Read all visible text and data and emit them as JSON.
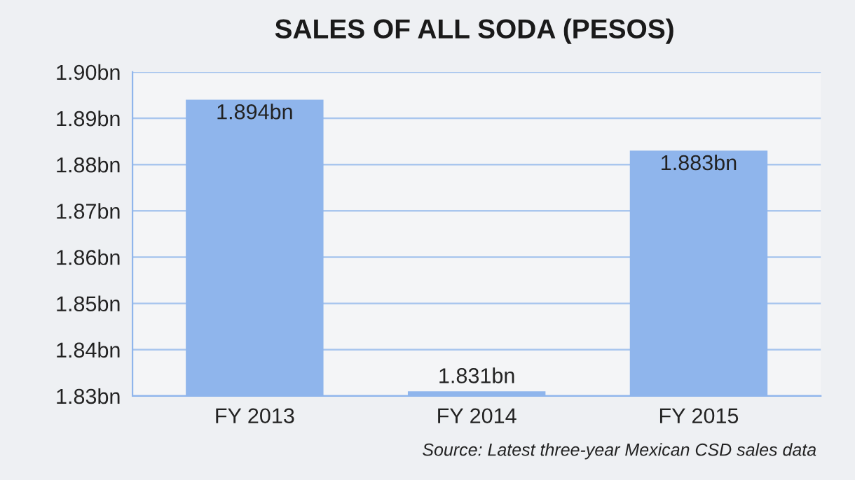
{
  "chart_data": {
    "type": "bar",
    "title": "SALES OF ALL SODA (PESOS)",
    "categories": [
      "FY 2013",
      "FY 2014",
      "FY 2015"
    ],
    "values": [
      1.894,
      1.831,
      1.883
    ],
    "value_labels": [
      "1.894bn",
      "1.831bn",
      "1.883bn"
    ],
    "color": "#8fb5ec",
    "ylim": [
      1.83,
      1.9
    ],
    "yticks": [
      {
        "value": 1.83,
        "label": "1.83bn"
      },
      {
        "value": 1.84,
        "label": "1.84bn"
      },
      {
        "value": 1.85,
        "label": "1.85bn"
      },
      {
        "value": 1.86,
        "label": "1.86bn"
      },
      {
        "value": 1.87,
        "label": "1.87bn"
      },
      {
        "value": 1.88,
        "label": "1.88bn"
      },
      {
        "value": 1.89,
        "label": "1.89bn"
      },
      {
        "value": 1.9,
        "label": "1.90bn"
      }
    ],
    "grid": "y",
    "annotations": [
      "Source: Latest three-year Mexican CSD sales data"
    ]
  }
}
